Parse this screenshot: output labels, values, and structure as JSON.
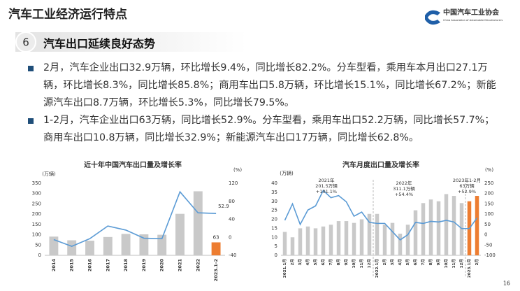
{
  "header": {
    "title": "汽车工业经济运行特点",
    "logo": "中国汽车工业协会",
    "logo_sub": "China Association of Automobile Manufacturers"
  },
  "section": {
    "number": "6",
    "title": "汽车出口延续良好态势"
  },
  "bullets": [
    "2月，汽车企业出口32.9万辆，环比增长9.4%，同比增长82.2%。分车型看，乘用车本月出口27.1万辆，环比增长8.3%，同比增长85.8%；商用车出口5.8万辆，环比增长15.1%，同比增长67.2%；新能源汽车出口8.7万辆，环比增长5.3%，同比增长79.5%。",
    "1-2月，汽车企业出口63万辆，同比增长52.9%。分车型看，乘用车出口52.2万辆，同比增长57.7%；商用车出口10.8万辆，同比增长32.9%；新能源汽车出口17万辆，同比增长62.8%。"
  ],
  "page_number": "16",
  "chart_data": [
    {
      "type": "bar-line",
      "title": "近十年中国汽车出口量及增长率",
      "y_unit": "(万辆)",
      "y2_unit": "(%)",
      "categories": [
        "2014",
        "2015",
        "2016",
        "2017",
        "2018",
        "2019",
        "2020",
        "2021",
        "2022",
        "2023.1-2"
      ],
      "series": [
        {
          "color": "#c9c9c9",
          "colors": [
            "#c9c9c9",
            "#c9c9c9",
            "#c9c9c9",
            "#c9c9c9",
            "#c9c9c9",
            "#c9c9c9",
            "#c9c9c9",
            "#c9c9c9",
            "#c9c9c9",
            "#ed7d31"
          ],
          "values": [
            91,
            73,
            71,
            89,
            104,
            102,
            100,
            201.5,
            311.1,
            63
          ]
        },
        {
          "color": "#5b9bd5",
          "axis": "y2",
          "values": [
            -5,
            -20,
            -3,
            25,
            16,
            -2,
            -3,
            101.1,
            54.4,
            52.9
          ]
        }
      ],
      "ylim": [
        0,
        350
      ],
      "yticks": [
        0,
        50,
        100,
        150,
        200,
        250,
        300,
        350
      ],
      "y2lim": [
        -40,
        120
      ],
      "y2ticks": [
        -40,
        0,
        40,
        80,
        120
      ]
    },
    {
      "type": "bar-line",
      "title": "汽车月度出口量及增长率",
      "y_unit": "(万辆)",
      "y2_unit": "(%)",
      "categories": [
        "2021.1月",
        "2月",
        "3月",
        "4月",
        "5月",
        "6月",
        "7月",
        "8月",
        "9月",
        "10月",
        "11月",
        "12月",
        "2022.1月",
        "2月",
        "3月",
        "4月",
        "5月",
        "6月",
        "7月",
        "8月",
        "9月",
        "10月",
        "11月",
        "12月",
        "2023.1月",
        "2月"
      ],
      "series": [
        {
          "color": "#c9c9c9",
          "colors": [
            "#c9c9c9",
            "#c9c9c9",
            "#c9c9c9",
            "#c9c9c9",
            "#c9c9c9",
            "#c9c9c9",
            "#c9c9c9",
            "#c9c9c9",
            "#c9c9c9",
            "#c9c9c9",
            "#c9c9c9",
            "#c9c9c9",
            "#c9c9c9",
            "#c9c9c9",
            "#c9c9c9",
            "#c9c9c9",
            "#c9c9c9",
            "#c9c9c9",
            "#c9c9c9",
            "#c9c9c9",
            "#c9c9c9",
            "#c9c9c9",
            "#c9c9c9",
            "#c9c9c9",
            "#ed7d31",
            "#ed7d31"
          ],
          "values": [
            13,
            10,
            15,
            16,
            15,
            16,
            17,
            19,
            19,
            18,
            20,
            23,
            23,
            17,
            18,
            12,
            17,
            25,
            29,
            31,
            30,
            34,
            33,
            29,
            30,
            33
          ]
        },
        {
          "color": "#5b9bd5",
          "axis": "y2",
          "values": [
            70,
            150,
            50,
            120,
            140,
            215,
            180,
            190,
            160,
            90,
            110,
            60,
            55,
            55,
            15,
            -25,
            0,
            60,
            55,
            65,
            62,
            70,
            62,
            30,
            30,
            82
          ]
        }
      ],
      "ylim": [
        0,
        40
      ],
      "yticks": [
        0,
        5,
        10,
        15,
        20,
        25,
        30,
        35,
        40
      ],
      "y2lim": [
        -100,
        250
      ],
      "y2ticks": [
        -100,
        -50,
        0,
        50,
        100,
        150,
        200,
        250
      ],
      "annotations": [
        [
          "2021年",
          "201.5万辆",
          "+101.1%"
        ],
        [
          "2022年",
          "311.1万辆",
          "+54.4%"
        ],
        [
          "2023年1-2月",
          "63万辆",
          "+52.9%"
        ]
      ]
    }
  ]
}
